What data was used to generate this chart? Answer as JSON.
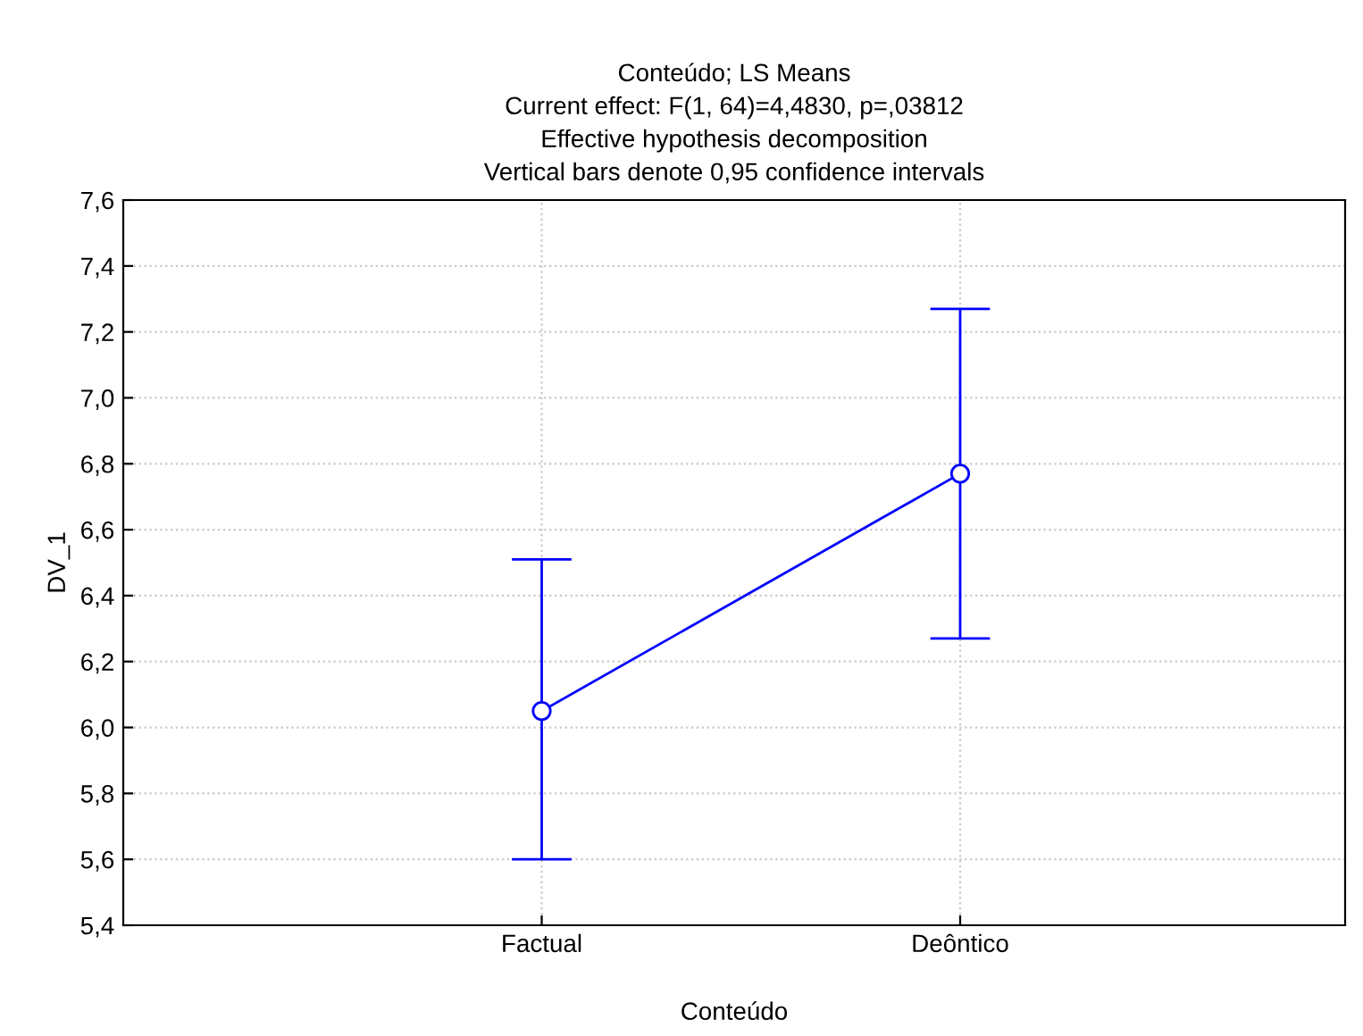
{
  "chart_data": {
    "type": "line",
    "title": "Conteúdo; LS Means",
    "subtitle": "Current effect: F(1, 64)=4,4830, p=,03812\nEffective hypothesis decomposition\nVertical bars denote 0,95 confidence intervals",
    "xlabel": "Conteúdo",
    "ylabel": "DV_1",
    "categories": [
      "Factual",
      "Deôntico"
    ],
    "series": [
      {
        "color": "#0000ff",
        "values": [
          6.05,
          6.77
        ],
        "errors": [
          [
            5.6,
            6.51
          ],
          [
            6.27,
            7.27
          ]
        ]
      }
    ],
    "ylim": [
      5.4,
      7.6
    ],
    "yticks": [
      {
        "value": 5.4,
        "label": "5,4"
      },
      {
        "value": 5.6,
        "label": "5,6"
      },
      {
        "value": 5.8,
        "label": "5,8"
      },
      {
        "value": 6.0,
        "label": "6,0"
      },
      {
        "value": 6.2,
        "label": "6,2"
      },
      {
        "value": 6.4,
        "label": "6,4"
      },
      {
        "value": 6.6,
        "label": "6,6"
      },
      {
        "value": 6.8,
        "label": "6,8"
      },
      {
        "value": 7.0,
        "label": "7,0"
      },
      {
        "value": 7.2,
        "label": "7,2"
      },
      {
        "value": 7.4,
        "label": "7,4"
      },
      {
        "value": 7.6,
        "label": "7,6"
      }
    ],
    "grid": true,
    "marker": "circle",
    "line_style": "solid",
    "legend": false
  }
}
